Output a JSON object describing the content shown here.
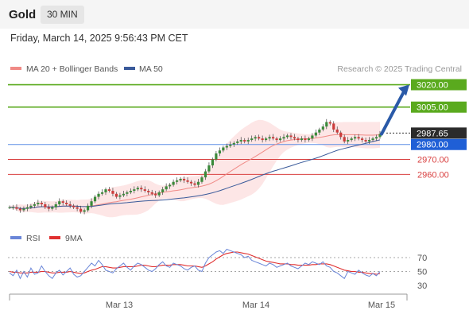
{
  "header": {
    "title": "Gold",
    "timeframe": "30 MIN"
  },
  "datetime": "Friday, March 14, 2025 9:56:43 PM CET",
  "colors": {
    "bollinger": "#f08a86",
    "ma50": "#3a5a9a",
    "resistance": "#5aaa1e",
    "support": "#d94040",
    "pivot": "#5b8ee6",
    "rsi": "#6a86d8",
    "rsi_ma": "#e03030",
    "candle_up": "#3a8a3a",
    "candle_down": "#cc3b3b",
    "arrow": "#2a5aa8",
    "band_fill": "#fde0e0"
  },
  "chart_data": [
    {
      "type": "candlestick",
      "title": "",
      "legend": [
        {
          "name": "MA 20 + Bollinger Bands",
          "color": "#f08a86"
        },
        {
          "name": "MA 50",
          "color": "#3a5a9a"
        }
      ],
      "legend_placement": "top-left",
      "credit": "Research © 2025 Trading Central",
      "x_ticks": [
        "Mar 13",
        "Mar 14",
        "Mar 15"
      ],
      "y_range": [
        2932,
        3024
      ],
      "grid": false,
      "levels": [
        {
          "label": "3020.00",
          "value": 3020.0,
          "kind": "resistance"
        },
        {
          "label": "3005.00",
          "value": 3005.0,
          "kind": "resistance"
        },
        {
          "label": "2987.65",
          "value": 2987.65,
          "kind": "last"
        },
        {
          "label": "2980.00",
          "value": 2980.0,
          "kind": "pivot"
        },
        {
          "label": "2970.00",
          "value": 2970.0,
          "kind": "support"
        },
        {
          "label": "2960.00",
          "value": 2960.0,
          "kind": "support"
        }
      ],
      "close": [
        2938,
        2938,
        2937,
        2936,
        2937,
        2938,
        2939,
        2940,
        2941,
        2940,
        2938,
        2937,
        2938,
        2940,
        2942,
        2941,
        2940,
        2939,
        2938,
        2937,
        2935,
        2936,
        2939,
        2942,
        2945,
        2947,
        2948,
        2950,
        2949,
        2947,
        2945,
        2946,
        2947,
        2948,
        2949,
        2950,
        2951,
        2950,
        2949,
        2948,
        2947,
        2946,
        2948,
        2950,
        2952,
        2953,
        2955,
        2956,
        2957,
        2956,
        2955,
        2954,
        2953,
        2955,
        2958,
        2962,
        2966,
        2970,
        2974,
        2976,
        2978,
        2979,
        2980,
        2981,
        2982,
        2983,
        2982,
        2983,
        2984,
        2985,
        2984,
        2983,
        2984,
        2985,
        2984,
        2983,
        2984,
        2985,
        2986,
        2985,
        2984,
        2983,
        2984,
        2983,
        2984,
        2986,
        2988,
        2990,
        2992,
        2995,
        2994,
        2990,
        2988,
        2985,
        2982,
        2983,
        2984,
        2985,
        2984,
        2983,
        2982,
        2983,
        2984,
        2985,
        2987
      ],
      "rsi_y_ticks": [
        70,
        50,
        30
      ],
      "rsi_legend": [
        {
          "name": "RSI",
          "color": "#6a86d8"
        },
        {
          "name": "9MA",
          "color": "#e03030"
        }
      ],
      "rsi": [
        48,
        44,
        52,
        40,
        50,
        42,
        55,
        46,
        48,
        58,
        50,
        44,
        40,
        48,
        52,
        45,
        50,
        55,
        46,
        42,
        44,
        50,
        56,
        62,
        58,
        66,
        60,
        52,
        50,
        48,
        54,
        58,
        62,
        56,
        52,
        58,
        62,
        60,
        56,
        52,
        50,
        54,
        60,
        64,
        58,
        56,
        62,
        60,
        58,
        54,
        52,
        56,
        58,
        52,
        50,
        62,
        70,
        74,
        78,
        80,
        76,
        82,
        80,
        78,
        76,
        74,
        70,
        72,
        66,
        64,
        62,
        60,
        58,
        62,
        60,
        56,
        58,
        60,
        62,
        58,
        56,
        54,
        58,
        62,
        60,
        64,
        62,
        60,
        64,
        58,
        56,
        50,
        48,
        44,
        40,
        50,
        48,
        46,
        52,
        48,
        45,
        43,
        47,
        44,
        50
      ],
      "rsi_ma": [
        50,
        49,
        49,
        48,
        48,
        48,
        49,
        49,
        49,
        50,
        50,
        49,
        48,
        48,
        49,
        49,
        49,
        50,
        49,
        48,
        47,
        48,
        50,
        52,
        53,
        55,
        57,
        57,
        56,
        55,
        55,
        56,
        57,
        57,
        57,
        57,
        58,
        59,
        59,
        58,
        57,
        57,
        58,
        59,
        59,
        59,
        60,
        60,
        60,
        59,
        58,
        58,
        58,
        57,
        56,
        58,
        61,
        64,
        68,
        71,
        74,
        76,
        77,
        78,
        78,
        77,
        76,
        75,
        73,
        71,
        69,
        67,
        65,
        64,
        63,
        62,
        61,
        61,
        61,
        60,
        60,
        59,
        59,
        59,
        59,
        60,
        60,
        61,
        61,
        61,
        60,
        58,
        56,
        54,
        52,
        51,
        50,
        50,
        49,
        49,
        48,
        47,
        47,
        46,
        47
      ]
    }
  ]
}
